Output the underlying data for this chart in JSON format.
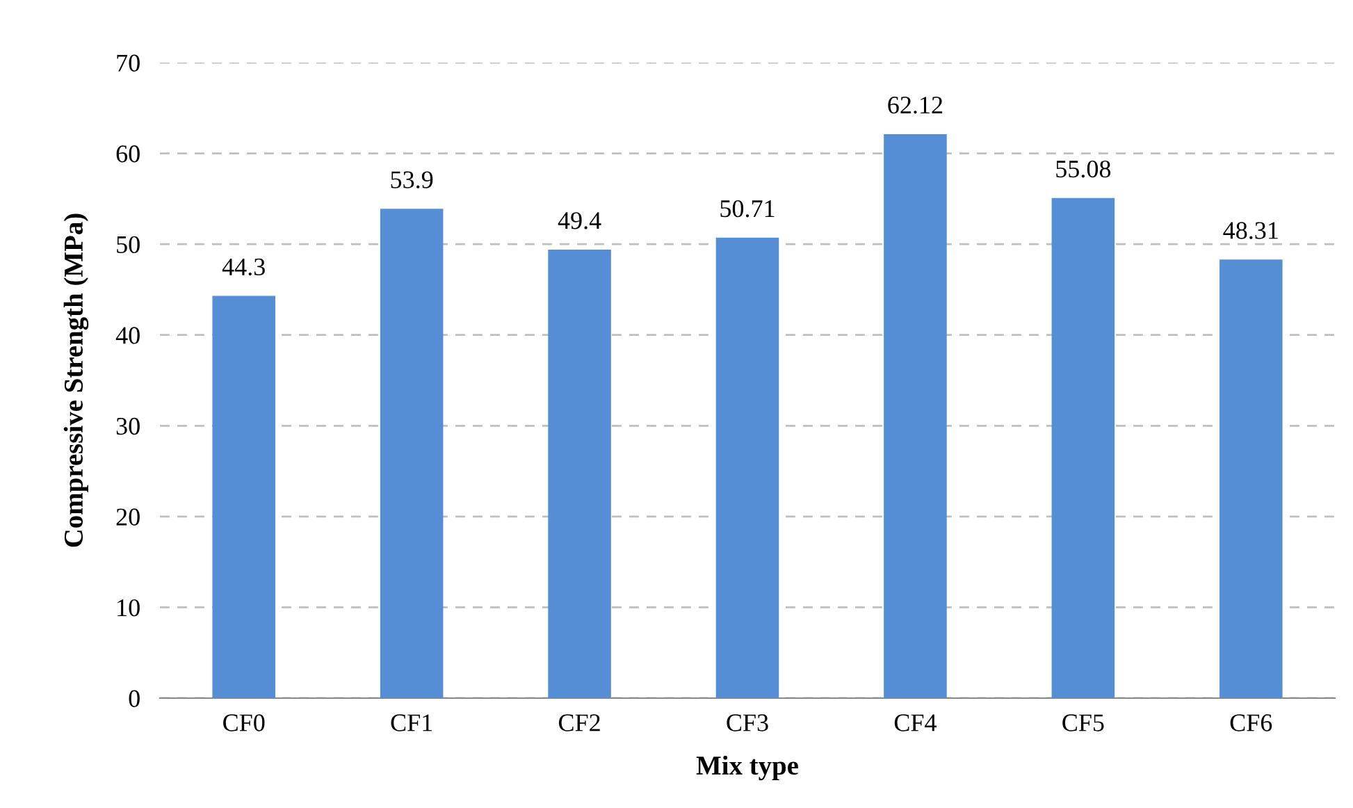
{
  "chart_data": {
    "type": "bar",
    "categories": [
      "CF0",
      "CF1",
      "CF2",
      "CF3",
      "CF4",
      "CF5",
      "CF6"
    ],
    "values": [
      44.3,
      53.9,
      49.4,
      50.71,
      62.12,
      55.08,
      48.31
    ],
    "color": "#558ed5",
    "xlabel": "Mix type",
    "ylabel": "Compressive Strength (MPa)",
    "ylim": [
      0,
      70
    ],
    "yticks": [
      0,
      10,
      20,
      30,
      40,
      50,
      60,
      70
    ],
    "grid": "y",
    "data_labels": true
  }
}
